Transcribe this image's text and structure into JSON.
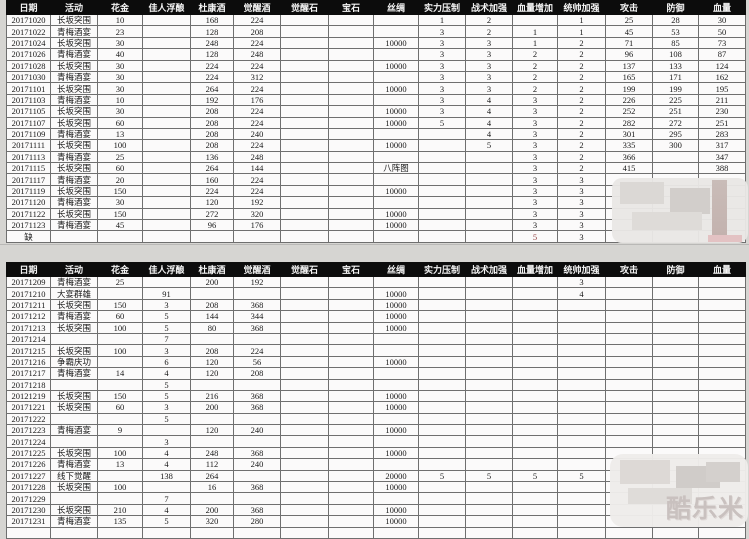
{
  "columns": [
    "日期",
    "活动",
    "花金",
    "佳人浮酿",
    "杜康酒",
    "觉醒酒",
    "觉醒石",
    "宝石",
    "丝绸",
    "实力压制",
    "战术加强",
    "血量增加",
    "统帅加强",
    "攻击",
    "防御",
    "血量"
  ],
  "tables": {
    "table1": {
      "rows": [
        [
          "20171020",
          "长坂突围",
          "10",
          "",
          "168",
          "224",
          "",
          "",
          "",
          "1",
          "2",
          "",
          "1",
          "25",
          "28",
          "30"
        ],
        [
          "20171022",
          "青梅酒宴",
          "23",
          "",
          "128",
          "208",
          "",
          "",
          "",
          "3",
          "2",
          "1",
          "1",
          "45",
          "53",
          "50"
        ],
        [
          "20171024",
          "长坂突围",
          "30",
          "",
          "248",
          "224",
          "",
          "",
          "10000",
          "3",
          "3",
          "1",
          "2",
          "71",
          "85",
          "73"
        ],
        [
          "20171026",
          "青梅酒宴",
          "40",
          "",
          "128",
          "248",
          "",
          "",
          "",
          "3",
          "3",
          "2",
          "2",
          "96",
          "108",
          "87"
        ],
        [
          "20171028",
          "长坂突围",
          "30",
          "",
          "224",
          "224",
          "",
          "",
          "10000",
          "3",
          "3",
          "2",
          "2",
          "137",
          "133",
          "124"
        ],
        [
          "20171030",
          "青梅酒宴",
          "30",
          "",
          "224",
          "312",
          "",
          "",
          "",
          "3",
          "3",
          "2",
          "2",
          "165",
          "171",
          "162"
        ],
        [
          "20171101",
          "长坂突围",
          "30",
          "",
          "264",
          "224",
          "",
          "",
          "10000",
          "3",
          "3",
          "2",
          "2",
          "199",
          "199",
          "195"
        ],
        [
          "20171103",
          "青梅酒宴",
          "10",
          "",
          "192",
          "176",
          "",
          "",
          "",
          "3",
          "4",
          "3",
          "2",
          "226",
          "225",
          "211"
        ],
        [
          "20171105",
          "长坂突围",
          "30",
          "",
          "208",
          "224",
          "",
          "",
          "10000",
          "3",
          "4",
          "3",
          "2",
          "252",
          "251",
          "230"
        ],
        [
          "20171107",
          "长坂突围",
          "60",
          "",
          "208",
          "224",
          "",
          "",
          "10000",
          "5",
          "4",
          "3",
          "2",
          "282",
          "272",
          "251"
        ],
        [
          "20171109",
          "青梅酒宴",
          "13",
          "",
          "208",
          "240",
          "",
          "",
          "",
          "",
          "4",
          "3",
          "2",
          "301",
          "295",
          "283"
        ],
        [
          "20171111",
          "长坂突围",
          "100",
          "",
          "208",
          "224",
          "",
          "",
          "10000",
          "",
          "5",
          "3",
          "2",
          "335",
          "300",
          "317"
        ],
        [
          "20171113",
          "青梅酒宴",
          "25",
          "",
          "136",
          "248",
          "",
          "",
          "",
          "",
          "",
          "3",
          "2",
          "366",
          "",
          "347"
        ],
        [
          "20171115",
          "长坂突围",
          "60",
          "",
          "264",
          "144",
          "",
          "",
          "八阵图",
          "",
          "",
          "3",
          "2",
          "415",
          "",
          "388"
        ],
        [
          "20171117",
          "青梅酒宴",
          "20",
          "",
          "160",
          "224",
          "",
          "",
          "",
          "",
          "",
          "3",
          "3",
          "",
          "",
          ""
        ],
        [
          "20171119",
          "长坂突围",
          "150",
          "",
          "224",
          "224",
          "",
          "",
          "10000",
          "",
          "",
          "3",
          "3",
          "",
          "",
          ""
        ],
        [
          "20171120",
          "青梅酒宴",
          "30",
          "",
          "120",
          "192",
          "",
          "",
          "",
          "",
          "",
          "3",
          "3",
          "",
          "",
          ""
        ],
        [
          "20171122",
          "长坂突围",
          "150",
          "",
          "272",
          "320",
          "",
          "",
          "10000",
          "",
          "",
          "3",
          "3",
          "",
          "",
          ""
        ],
        [
          "20171123",
          "青梅酒宴",
          "45",
          "",
          "96",
          "176",
          "",
          "",
          "10000",
          "",
          "",
          "3",
          "3",
          "",
          "",
          ""
        ],
        [
          "缺",
          "",
          "",
          "",
          "",
          "",
          "",
          "",
          "",
          "",
          "",
          "5",
          "3",
          "",
          "",
          ""
        ]
      ]
    },
    "table2": {
      "rows": [
        [
          "20171209",
          "青梅酒宴",
          "25",
          "",
          "200",
          "192",
          "",
          "",
          "",
          "",
          "",
          "",
          "3",
          "",
          "",
          ""
        ],
        [
          "20171210",
          "大宴群雄",
          "",
          "91",
          "",
          "",
          "",
          "",
          "10000",
          "",
          "",
          "",
          "4",
          "",
          "",
          ""
        ],
        [
          "20171211",
          "长坂突围",
          "150",
          "3",
          "208",
          "368",
          "",
          "",
          "10000",
          "",
          "",
          "",
          "",
          "",
          "",
          ""
        ],
        [
          "20171212",
          "青梅酒宴",
          "60",
          "5",
          "144",
          "344",
          "",
          "",
          "10000",
          "",
          "",
          "",
          "",
          "",
          "",
          ""
        ],
        [
          "20171213",
          "长坂突围",
          "100",
          "5",
          "80",
          "368",
          "",
          "",
          "10000",
          "",
          "",
          "",
          "",
          "",
          "",
          ""
        ],
        [
          "20171214",
          "",
          "",
          "7",
          "",
          "",
          "",
          "",
          "",
          "",
          "",
          "",
          "",
          "",
          "",
          ""
        ],
        [
          "20171215",
          "长坂突围",
          "100",
          "3",
          "208",
          "224",
          "",
          "",
          "",
          "",
          "",
          "",
          "",
          "",
          "",
          ""
        ],
        [
          "20171216",
          "争霸庆功",
          "",
          "6",
          "120",
          "56",
          "",
          "",
          "10000",
          "",
          "",
          "",
          "",
          "",
          "",
          ""
        ],
        [
          "20171217",
          "青梅酒宴",
          "14",
          "4",
          "120",
          "208",
          "",
          "",
          "",
          "",
          "",
          "",
          "",
          "",
          "",
          ""
        ],
        [
          "20171218",
          "",
          "",
          "5",
          "",
          "",
          "",
          "",
          "",
          "",
          "",
          "",
          "",
          "",
          "",
          ""
        ],
        [
          "20121219",
          "长坂突围",
          "150",
          "5",
          "216",
          "368",
          "",
          "",
          "10000",
          "",
          "",
          "",
          "",
          "",
          "",
          ""
        ],
        [
          "20171221",
          "长坂突围",
          "60",
          "3",
          "200",
          "368",
          "",
          "",
          "10000",
          "",
          "",
          "",
          "",
          "",
          "",
          ""
        ],
        [
          "20171222",
          "",
          "",
          "5",
          "",
          "",
          "",
          "",
          "",
          "",
          "",
          "",
          "",
          "",
          "",
          ""
        ],
        [
          "20171223",
          "青梅酒宴",
          "9",
          "",
          "120",
          "240",
          "",
          "",
          "10000",
          "",
          "",
          "",
          "",
          "",
          "",
          ""
        ],
        [
          "20171224",
          "",
          "",
          "3",
          "",
          "",
          "",
          "",
          "",
          "",
          "",
          "",
          "",
          "",
          "",
          ""
        ],
        [
          "20171225",
          "长坂突围",
          "100",
          "4",
          "248",
          "368",
          "",
          "",
          "10000",
          "",
          "",
          "",
          "",
          "",
          "",
          ""
        ],
        [
          "20171226",
          "青梅酒宴",
          "13",
          "4",
          "112",
          "240",
          "",
          "",
          "",
          "",
          "",
          "",
          "",
          "",
          "",
          ""
        ],
        [
          "20171227",
          "线下觉醒",
          "",
          "138",
          "264",
          "",
          "",
          "",
          "20000",
          "5",
          "5",
          "5",
          "5",
          "",
          "",
          ""
        ],
        [
          "20171228",
          "长坂突围",
          "100",
          "",
          "16",
          "368",
          "",
          "",
          "10000",
          "",
          "",
          "",
          "",
          "",
          "",
          ""
        ],
        [
          "20171229",
          "",
          "",
          "7",
          "",
          "",
          "",
          "",
          "",
          "",
          "",
          "",
          "",
          "",
          "",
          ""
        ],
        [
          "20171230",
          "长坂突围",
          "210",
          "4",
          "200",
          "368",
          "",
          "",
          "10000",
          "",
          "",
          "",
          "",
          "",
          "",
          ""
        ],
        [
          "20171231",
          "青梅酒宴",
          "135",
          "5",
          "320",
          "280",
          "",
          "",
          "10000",
          "",
          "",
          "",
          "",
          "",
          "",
          ""
        ],
        [
          "",
          "",
          "",
          "",
          "",
          "",
          "",
          "",
          "",
          "",
          "",
          "",
          "",
          "",
          "",
          ""
        ]
      ]
    }
  },
  "highlight": {
    "table": "table1",
    "row": 19,
    "col": 11,
    "color": "#8e3a3a"
  },
  "watermark": {
    "text": "酷乐米"
  },
  "colors": {
    "header_bg": "#0c0c0c",
    "header_text": "#f4f4f4",
    "grid_line": "#6f6f6f",
    "cell_bg": "#fbfafa",
    "page_bg": "#d6d5d2",
    "censor_blur": "#e9e7e5",
    "highlight_red": "#8e3a3a"
  }
}
